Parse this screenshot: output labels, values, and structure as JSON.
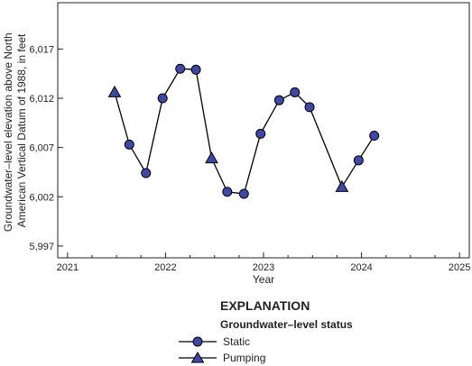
{
  "chart_data": {
    "type": "line",
    "xlabel": "Year",
    "ylabel_lines": [
      "Groundwater–level elevation above North",
      "American Vertical Datum of 1988, in feet"
    ],
    "xlim": [
      2020.9,
      2025.1
    ],
    "ylim": [
      5995.8,
      6021.7
    ],
    "x_ticks": [
      2021,
      2022,
      2023,
      2024,
      2025
    ],
    "x_tick_labels": [
      "2021",
      "2022",
      "2023",
      "2024",
      "2025"
    ],
    "y_ticks": [
      5997,
      6002,
      6007,
      6012,
      6017
    ],
    "y_tick_labels": [
      "5,997",
      "6,002",
      "6,007",
      "6,012",
      "6,017"
    ],
    "grid": false,
    "line_color": "#000000",
    "marker_fill": "#3f48a4",
    "marker_stroke": "#000000",
    "points": [
      {
        "x": 2021.48,
        "y": 6012.6,
        "status": "pumping"
      },
      {
        "x": 2021.63,
        "y": 6007.3,
        "status": "static"
      },
      {
        "x": 2021.8,
        "y": 6004.4,
        "status": "static"
      },
      {
        "x": 2021.97,
        "y": 6012.0,
        "status": "static"
      },
      {
        "x": 2022.15,
        "y": 6015.0,
        "status": "static"
      },
      {
        "x": 2022.31,
        "y": 6014.9,
        "status": "static"
      },
      {
        "x": 2022.47,
        "y": 6005.9,
        "status": "pumping"
      },
      {
        "x": 2022.63,
        "y": 6002.5,
        "status": "static"
      },
      {
        "x": 2022.8,
        "y": 6002.3,
        "status": "static"
      },
      {
        "x": 2022.97,
        "y": 6008.4,
        "status": "static"
      },
      {
        "x": 2023.16,
        "y": 6011.8,
        "status": "static"
      },
      {
        "x": 2023.32,
        "y": 6012.6,
        "status": "static"
      },
      {
        "x": 2023.47,
        "y": 6011.1,
        "status": "static"
      },
      {
        "x": 2023.8,
        "y": 6003.0,
        "status": "pumping"
      },
      {
        "x": 2023.97,
        "y": 6005.7,
        "status": "static"
      },
      {
        "x": 2024.13,
        "y": 6008.2,
        "status": "static"
      }
    ],
    "legend": {
      "title": "EXPLANATION",
      "subtitle": "Groundwater–level status",
      "items": [
        {
          "label": "Static",
          "marker": "circle"
        },
        {
          "label": "Pumping",
          "marker": "triangle"
        }
      ]
    }
  }
}
